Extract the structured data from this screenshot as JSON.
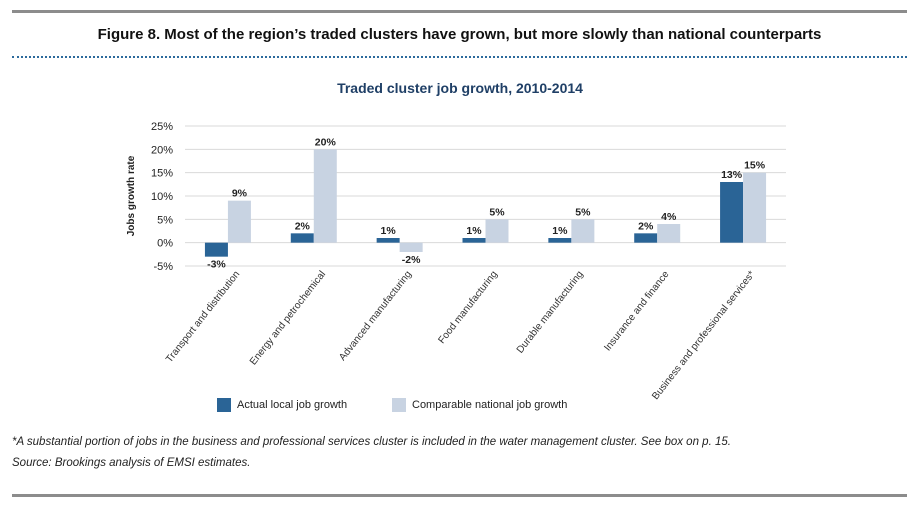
{
  "figure_title": "Figure 8. Most of the region’s traded clusters have grown, but more slowly than national counterparts",
  "footnote": "*A substantial portion of jobs in the business and professional services cluster is included in the water management cluster. See box on p. 15.",
  "source": "Source: Brookings analysis of EMSI estimates.",
  "colors": {
    "local": "#2a6496",
    "national": "#c8d3e2",
    "grid": "#d9d9d9",
    "title": "#1f3f66"
  },
  "chart_data": {
    "type": "bar",
    "title": "Traded cluster job growth, 2010-2014",
    "ylabel": "Jobs growth rate",
    "xlabel": "",
    "ylim": [
      -0.05,
      0.25
    ],
    "yticks": [
      "-5%",
      "0%",
      "5%",
      "10%",
      "15%",
      "20%",
      "25%"
    ],
    "ytick_values": [
      -0.05,
      0,
      0.05,
      0.1,
      0.15,
      0.2,
      0.25
    ],
    "grid": true,
    "legend_position": "bottom",
    "categories": [
      "Transport and distribution",
      "Energy and petrochemical",
      "Advanced manufacturing",
      "Food manufacturing",
      "Durable manufacturing",
      "Insurance and finance",
      "Business and professional services*"
    ],
    "series": [
      {
        "name": "Actual local job growth",
        "values": [
          -0.03,
          0.02,
          0.01,
          0.01,
          0.01,
          0.02,
          0.13
        ],
        "labels": [
          "-3%",
          "2%",
          "1%",
          "1%",
          "1%",
          "2%",
          "13%"
        ]
      },
      {
        "name": "Comparable national job growth",
        "values": [
          0.09,
          0.2,
          -0.02,
          0.05,
          0.05,
          0.04,
          0.15
        ],
        "labels": [
          "9%",
          "20%",
          "-2%",
          "5%",
          "5%",
          "4%",
          "15%"
        ]
      }
    ]
  }
}
